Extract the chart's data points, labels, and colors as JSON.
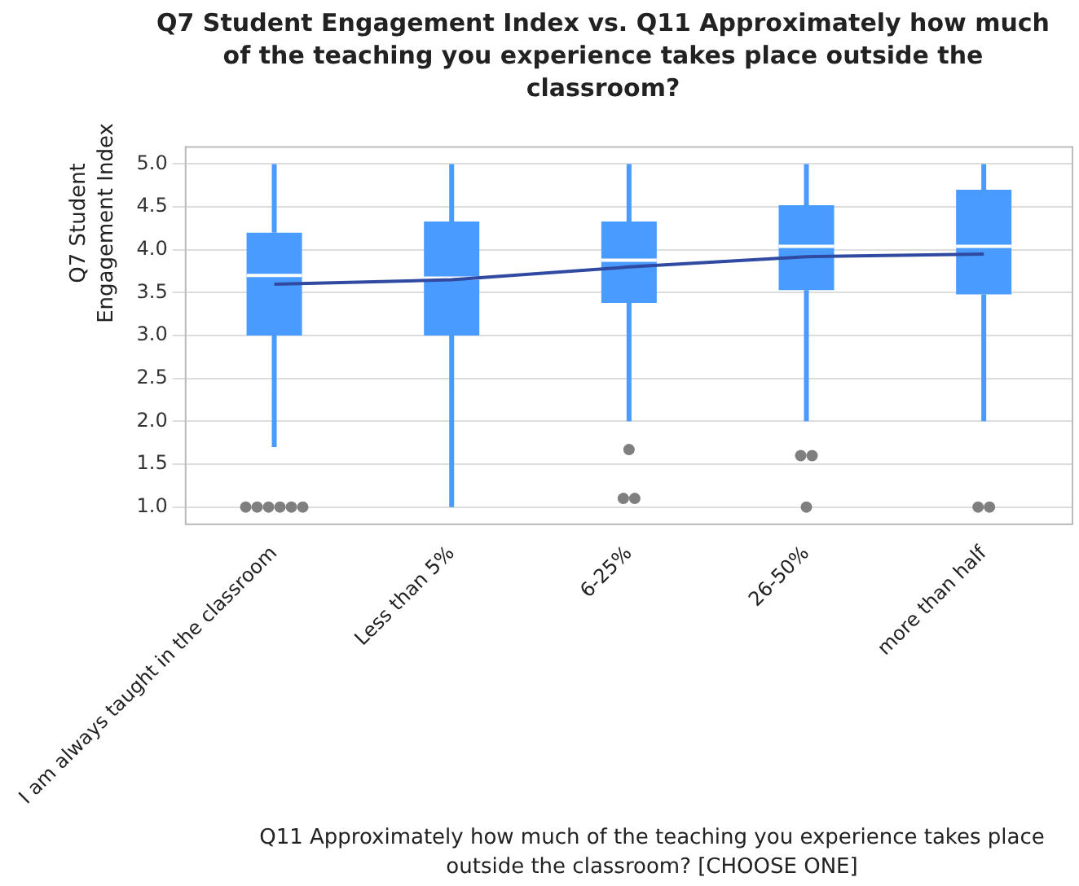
{
  "chart_data": {
    "type": "box",
    "title": "Q7 Student Engagement Index vs. Q11 Approximately how much of the teaching you experience takes place outside the classroom?",
    "xlabel": "Q11 Approximately how much of the teaching you experience takes place outside the classroom? [CHOOSE ONE]",
    "ylabel": "Q7 Student Engagement Index",
    "categories": [
      "I am always taught in the classroom",
      "Less than 5%",
      "6-25%",
      "26-50%",
      "more than half"
    ],
    "series": [
      {
        "type": "box",
        "color": "#4a9bff",
        "boxes": [
          {
            "low": 1.7,
            "q1": 3.0,
            "median": 3.7,
            "q3": 4.2,
            "high": 5.0,
            "outliers": [
              1.0,
              1.0,
              1.0,
              1.0,
              1.0,
              1.0
            ]
          },
          {
            "low": 1.0,
            "q1": 3.0,
            "median": 3.67,
            "q3": 4.33,
            "high": 5.0
          },
          {
            "low": 2.0,
            "q1": 3.38,
            "median": 3.88,
            "q3": 4.33,
            "high": 5.0,
            "outliers": [
              1.67,
              1.1,
              1.1
            ]
          },
          {
            "low": 2.0,
            "q1": 3.53,
            "median": 4.04,
            "q3": 4.52,
            "high": 5.0,
            "outliers": [
              1.6,
              1.6,
              1.0
            ]
          },
          {
            "low": 2.0,
            "q1": 3.48,
            "median": 4.04,
            "q3": 4.7,
            "high": 5.0,
            "outliers": [
              1.0,
              1.0
            ]
          }
        ]
      },
      {
        "type": "line",
        "color": "#2f4aa0",
        "values": [
          3.6,
          3.65,
          3.8,
          3.92,
          3.95
        ]
      }
    ],
    "ylim": [
      0.8,
      5.2
    ],
    "yticks": [
      {
        "value": 1,
        "label": "1.0"
      },
      {
        "value": 1.5,
        "label": "1.5"
      },
      {
        "value": 2,
        "label": "2.0"
      },
      {
        "value": 2.5,
        "label": "2.5"
      },
      {
        "value": 3,
        "label": "3.0"
      },
      {
        "value": 3.5,
        "label": "3.5"
      },
      {
        "value": 4,
        "label": "4.0"
      },
      {
        "value": 4.5,
        "label": "4.5"
      },
      {
        "value": 5,
        "label": "5.0"
      }
    ],
    "grid": "y",
    "legend": false
  }
}
